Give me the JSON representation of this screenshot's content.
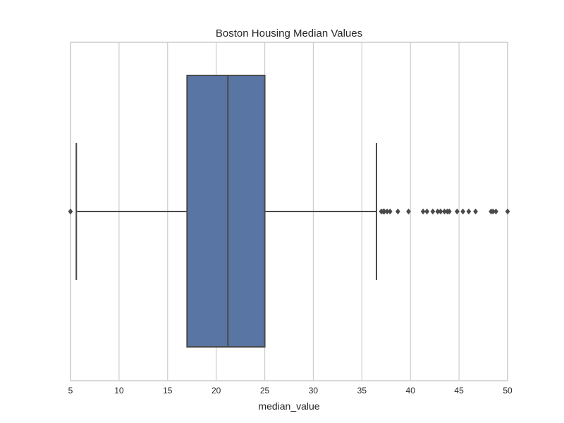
{
  "chart_data": {
    "type": "box",
    "title": "Boston Housing Median Values",
    "xlabel": "median_value",
    "ylabel": "",
    "xlim": [
      5,
      50
    ],
    "xticks": [
      5,
      10,
      15,
      20,
      25,
      30,
      35,
      40,
      45,
      50
    ],
    "xtick_labels": [
      "5",
      "10",
      "15",
      "20",
      "25",
      "30",
      "35",
      "40",
      "45",
      "50"
    ],
    "grid": true,
    "orientation": "horizontal",
    "box": {
      "whisker_low": 5.6,
      "q1": 17.0,
      "median": 21.2,
      "q3": 25.0,
      "whisker_high": 36.5
    },
    "outliers": [
      5.0,
      37.0,
      37.2,
      37.3,
      37.6,
      37.9,
      38.7,
      39.8,
      41.3,
      41.7,
      42.3,
      42.8,
      43.1,
      43.5,
      43.8,
      44.0,
      44.8,
      45.4,
      46.0,
      46.7,
      48.3,
      48.5,
      48.8,
      50.0
    ],
    "colors": {
      "box_fill": "#5875a4",
      "line": "#4a4a4a",
      "grid": "#cccccc",
      "frame": "#cccccc"
    }
  }
}
